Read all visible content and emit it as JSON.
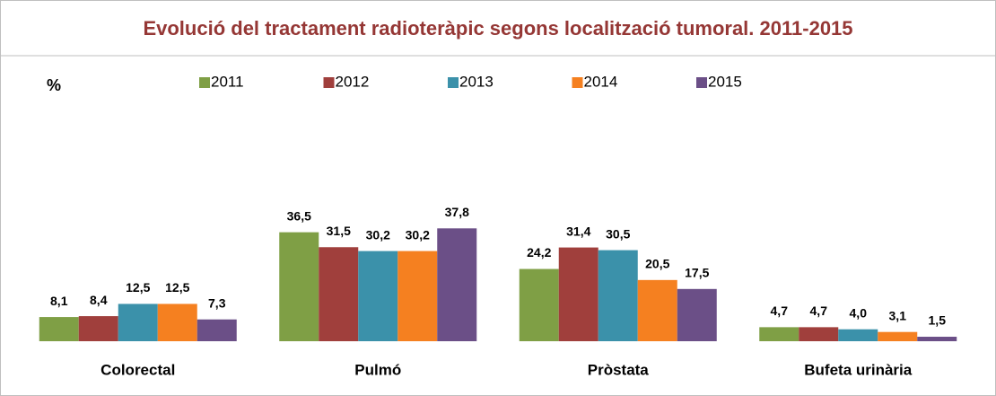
{
  "chart_data": {
    "type": "bar",
    "title": "Evolució del tractament radioteràpic segons localització tumoral. 2011-2015",
    "y_label": "%",
    "categories": [
      "Colorectal",
      "Pulmó",
      "Pròstata",
      "Bufeta urinària"
    ],
    "series": [
      {
        "name": "2011",
        "color": "#7f9f45",
        "values": [
          8.1,
          36.5,
          24.2,
          4.7
        ],
        "value_labels": [
          "8,1",
          "36,5",
          "24,2",
          "4,7"
        ]
      },
      {
        "name": "2012",
        "color": "#a03f3c",
        "values": [
          8.4,
          31.5,
          31.4,
          4.7
        ],
        "value_labels": [
          "8,4",
          "31,5",
          "31,4",
          "4,7"
        ]
      },
      {
        "name": "2013",
        "color": "#3b91aa",
        "values": [
          12.5,
          30.2,
          30.5,
          4.0
        ],
        "value_labels": [
          "12,5",
          "30,2",
          "30,5",
          "4,0"
        ]
      },
      {
        "name": "2014",
        "color": "#f58020",
        "values": [
          12.5,
          30.2,
          20.5,
          3.1
        ],
        "value_labels": [
          "12,5",
          "30,2",
          "20,5",
          "3,1"
        ]
      },
      {
        "name": "2015",
        "color": "#6b4f87",
        "values": [
          7.3,
          37.8,
          17.5,
          1.5
        ],
        "value_labels": [
          "7,3",
          "37,8",
          "17,5",
          "1,5"
        ]
      }
    ],
    "ylim": [
      0,
      40
    ]
  }
}
